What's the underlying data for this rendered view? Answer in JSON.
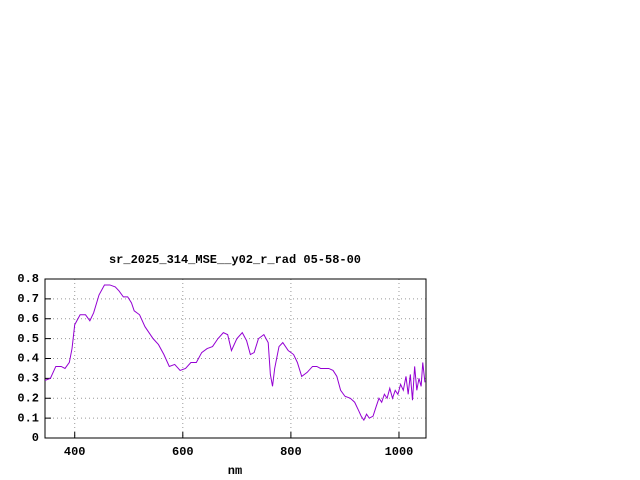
{
  "chart_data": {
    "type": "line",
    "title": "sr_2025_314_MSE__y02_r_rad 05-58-00",
    "x_label": "nm",
    "x": [
      345,
      355,
      365,
      375,
      382,
      390,
      395,
      400,
      410,
      420,
      428,
      435,
      445,
      455,
      465,
      475,
      482,
      490,
      498,
      505,
      510,
      520,
      530,
      545,
      555,
      565,
      575,
      585,
      595,
      605,
      615,
      625,
      635,
      645,
      655,
      665,
      675,
      683,
      690,
      700,
      710,
      718,
      725,
      732,
      740,
      750,
      758,
      762,
      766,
      770,
      778,
      785,
      795,
      805,
      812,
      820,
      830,
      840,
      848,
      855,
      870,
      878,
      885,
      892,
      900,
      910,
      918,
      925,
      930,
      935,
      940,
      945,
      952,
      958,
      963,
      968,
      973,
      978,
      983,
      988,
      993,
      998,
      1003,
      1008,
      1013,
      1017,
      1021,
      1025,
      1029,
      1033,
      1037,
      1041,
      1044,
      1048
    ],
    "values": [
      0.29,
      0.3,
      0.36,
      0.36,
      0.35,
      0.38,
      0.45,
      0.57,
      0.62,
      0.62,
      0.59,
      0.63,
      0.72,
      0.77,
      0.77,
      0.76,
      0.74,
      0.71,
      0.71,
      0.68,
      0.64,
      0.62,
      0.56,
      0.5,
      0.47,
      0.42,
      0.36,
      0.37,
      0.34,
      0.35,
      0.38,
      0.38,
      0.43,
      0.45,
      0.46,
      0.5,
      0.53,
      0.52,
      0.44,
      0.5,
      0.53,
      0.49,
      0.42,
      0.43,
      0.5,
      0.52,
      0.48,
      0.32,
      0.26,
      0.35,
      0.46,
      0.48,
      0.44,
      0.42,
      0.38,
      0.31,
      0.33,
      0.36,
      0.36,
      0.35,
      0.35,
      0.34,
      0.31,
      0.24,
      0.21,
      0.2,
      0.18,
      0.14,
      0.11,
      0.09,
      0.12,
      0.1,
      0.11,
      0.16,
      0.2,
      0.18,
      0.22,
      0.2,
      0.25,
      0.2,
      0.24,
      0.22,
      0.27,
      0.24,
      0.31,
      0.22,
      0.32,
      0.19,
      0.36,
      0.24,
      0.3,
      0.26,
      0.38,
      0.28
    ],
    "color": "#9400d3",
    "xlim": [
      345,
      1050
    ],
    "xticks": [
      400,
      600,
      800,
      1000
    ],
    "ylim": [
      0,
      0.8
    ],
    "yticks": [
      0,
      0.1,
      0.2,
      0.3,
      0.4,
      0.5,
      0.6,
      0.7,
      0.8
    ],
    "grid": true
  }
}
